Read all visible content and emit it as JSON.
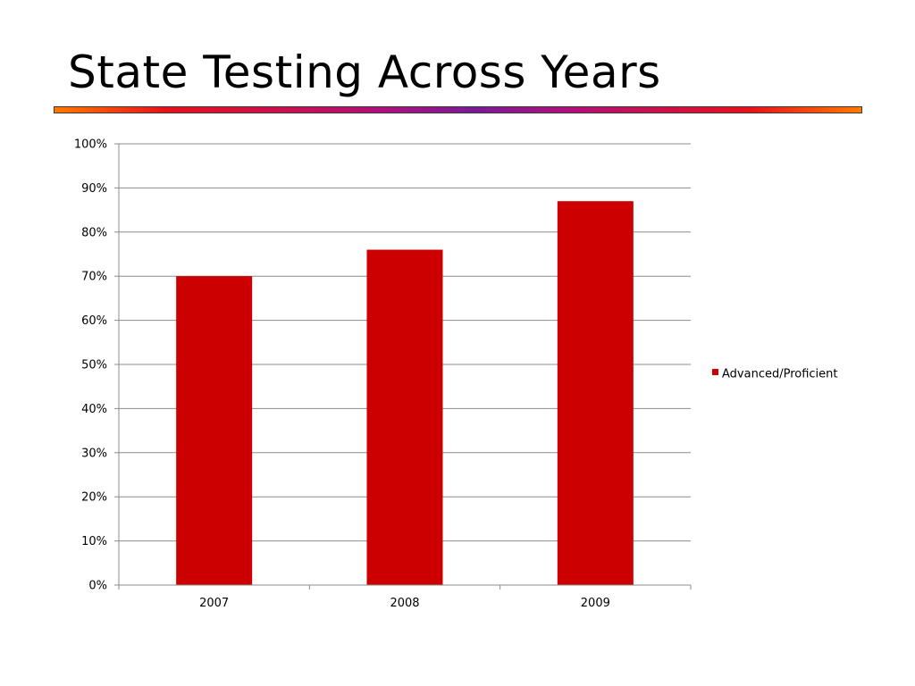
{
  "slide": {
    "title": "State Testing Across Years"
  },
  "colors": {
    "bar": "#cc0000",
    "gridline": "#8c8c8c",
    "axis": "#8c8c8c"
  },
  "chart_data": {
    "type": "bar",
    "title": "",
    "xlabel": "",
    "ylabel": "",
    "categories": [
      "2007",
      "2008",
      "2009"
    ],
    "series": [
      {
        "name": "Advanced/Proficient",
        "values": [
          70,
          76,
          87
        ],
        "color": "#cc0000"
      }
    ],
    "ylim": [
      0,
      100
    ],
    "yticks": [
      0,
      10,
      20,
      30,
      40,
      50,
      60,
      70,
      80,
      90,
      100
    ],
    "ytick_format": "percent",
    "grid": true,
    "legend_position": "right"
  }
}
